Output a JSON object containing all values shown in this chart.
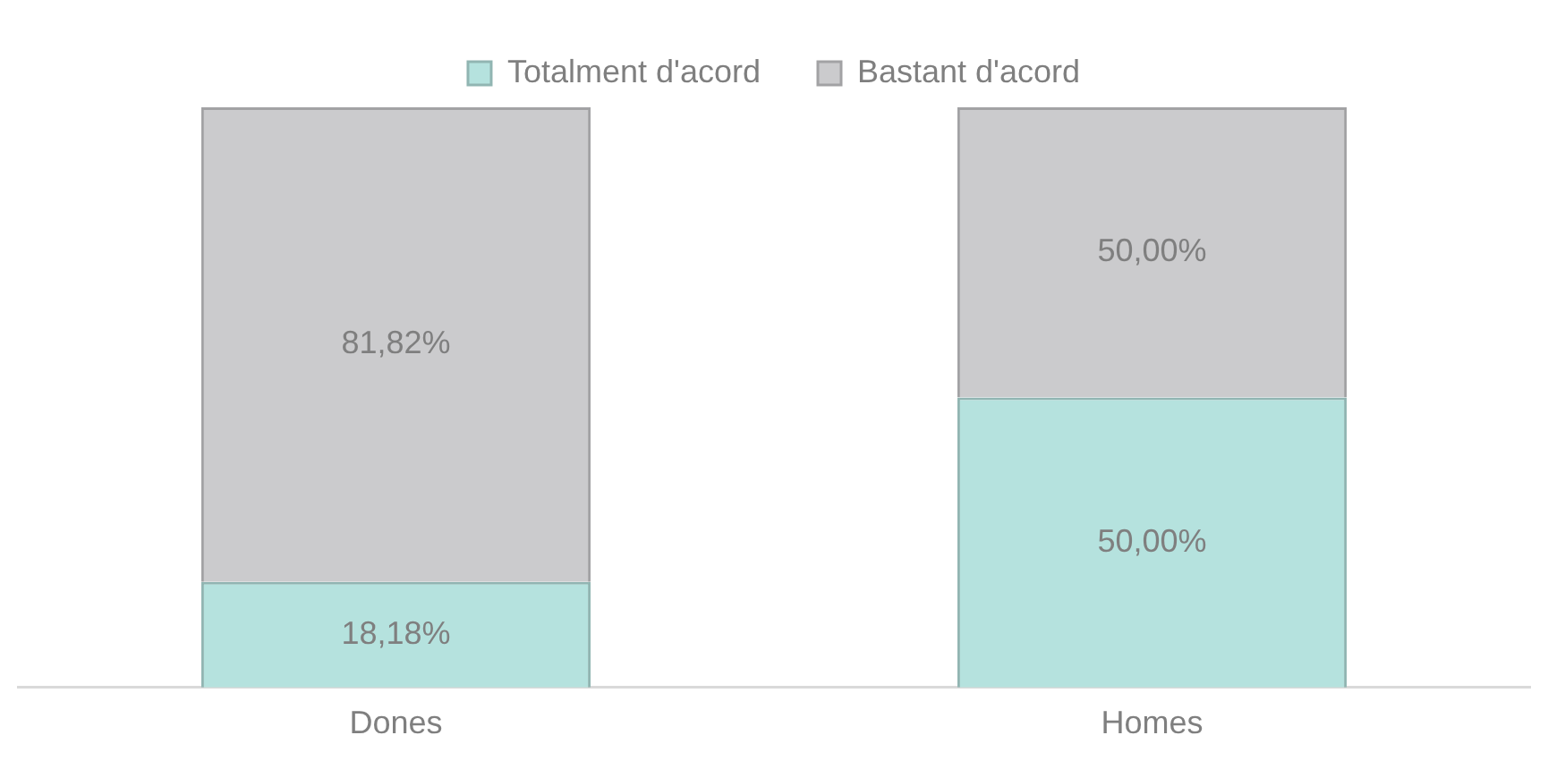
{
  "chart_data": {
    "type": "bar",
    "stacked": true,
    "legend": "top",
    "categories": [
      "Dones",
      "Homes"
    ],
    "series": [
      {
        "name": "Totalment d'acord",
        "color": "#b5e2de",
        "values": [
          18.18,
          50.0
        ],
        "value_labels": [
          "18,18%",
          "50,00%"
        ]
      },
      {
        "name": "Bastant d'acord",
        "color": "#cbcbcd",
        "values": [
          81.82,
          50.0
        ],
        "value_labels": [
          "81,82%",
          "50,00%"
        ]
      }
    ]
  }
}
